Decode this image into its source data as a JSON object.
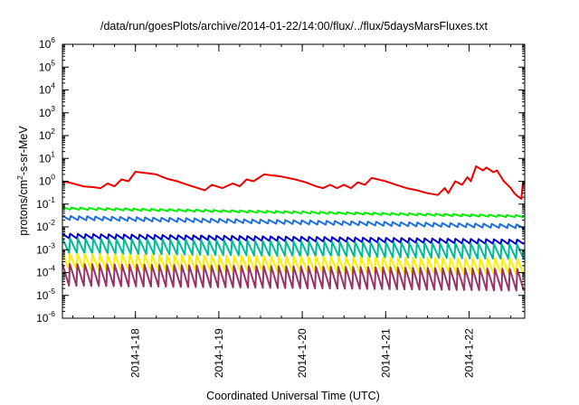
{
  "chart_data": {
    "type": "line",
    "title": "/data/run/goesPlots/archive/2014-01-22/14:00/flux/../flux/5daysMarsFluxes.txt",
    "xlabel": "Coordinated Universal Time (UTC)",
    "ylabel": {
      "prefix": "protons/cm",
      "sup": "2",
      "suffix": "-s-sr-MeV"
    },
    "y_scale": "log",
    "ylim": [
      1e-06,
      1000000.0
    ],
    "y_ticks": [
      {
        "value": 1e-06,
        "base": "10",
        "exp": "-6"
      },
      {
        "value": 1e-05,
        "base": "10",
        "exp": "-5"
      },
      {
        "value": 0.0001,
        "base": "10",
        "exp": "-4"
      },
      {
        "value": 0.001,
        "base": "10",
        "exp": "-3"
      },
      {
        "value": 0.01,
        "base": "10",
        "exp": "-2"
      },
      {
        "value": 0.1,
        "base": "10",
        "exp": "-1"
      },
      {
        "value": 1.0,
        "base": "10",
        "exp": "0"
      },
      {
        "value": 10.0,
        "base": "10",
        "exp": "1"
      },
      {
        "value": 100.0,
        "base": "10",
        "exp": "2"
      },
      {
        "value": 1000.0,
        "base": "10",
        "exp": "3"
      },
      {
        "value": 10000.0,
        "base": "10",
        "exp": "4"
      },
      {
        "value": 100000.0,
        "base": "10",
        "exp": "5"
      },
      {
        "value": 1000000.0,
        "base": "10",
        "exp": "6"
      }
    ],
    "xlim": [
      "2014-01-17 03:00",
      "2014-01-22 16:00"
    ],
    "x_ticks": [
      {
        "label": "2014-1-18",
        "value": "2014-01-18 00:00"
      },
      {
        "label": "2014-1-19",
        "value": "2014-01-19 00:00"
      },
      {
        "label": "2014-1-20",
        "value": "2014-01-20 00:00"
      },
      {
        "label": "2014-1-21",
        "value": "2014-01-21 00:00"
      },
      {
        "label": "2014-1-22",
        "value": "2014-01-22 00:00"
      }
    ],
    "grid": false,
    "legend": "none",
    "series": [
      {
        "color": "#ee0000",
        "points": [
          [
            "2014-01-17 03:00",
            1.0
          ],
          [
            "2014-01-17 06:00",
            0.8
          ],
          [
            "2014-01-17 09:00",
            0.6
          ],
          [
            "2014-01-17 12:00",
            0.55
          ],
          [
            "2014-01-17 14:00",
            0.5
          ],
          [
            "2014-01-17 16:00",
            0.8
          ],
          [
            "2014-01-17 18:00",
            0.6
          ],
          [
            "2014-01-17 20:00",
            1.2
          ],
          [
            "2014-01-17 22:00",
            1.0
          ],
          [
            "2014-01-18 00:00",
            2.6
          ],
          [
            "2014-01-18 03:00",
            2.3
          ],
          [
            "2014-01-18 06:00",
            2.0
          ],
          [
            "2014-01-18 09:00",
            1.3
          ],
          [
            "2014-01-18 12:00",
            1.0
          ],
          [
            "2014-01-18 15:00",
            0.7
          ],
          [
            "2014-01-18 18:00",
            0.5
          ],
          [
            "2014-01-18 20:00",
            0.4
          ],
          [
            "2014-01-18 22:00",
            0.7
          ],
          [
            "2014-01-19 01:00",
            0.5
          ],
          [
            "2014-01-19 04:00",
            0.8
          ],
          [
            "2014-01-19 06:00",
            0.6
          ],
          [
            "2014-01-19 08:00",
            1.2
          ],
          [
            "2014-01-19 10:00",
            1.0
          ],
          [
            "2014-01-19 13:00",
            2.0
          ],
          [
            "2014-01-19 18:00",
            1.6
          ],
          [
            "2014-01-19 22:00",
            1.2
          ],
          [
            "2014-01-20 01:00",
            0.9
          ],
          [
            "2014-01-20 04:00",
            0.6
          ],
          [
            "2014-01-20 06:00",
            0.5
          ],
          [
            "2014-01-20 08:00",
            0.7
          ],
          [
            "2014-01-20 10:00",
            0.5
          ],
          [
            "2014-01-20 12:00",
            0.7
          ],
          [
            "2014-01-20 14:00",
            0.5
          ],
          [
            "2014-01-20 16:00",
            0.9
          ],
          [
            "2014-01-20 18:00",
            0.7
          ],
          [
            "2014-01-20 20:00",
            1.4
          ],
          [
            "2014-01-21 00:00",
            1.0
          ],
          [
            "2014-01-21 03:00",
            0.7
          ],
          [
            "2014-01-21 06:00",
            0.5
          ],
          [
            "2014-01-21 09:00",
            0.4
          ],
          [
            "2014-01-21 12:00",
            0.3
          ],
          [
            "2014-01-21 15:00",
            0.25
          ],
          [
            "2014-01-21 17:00",
            0.5
          ],
          [
            "2014-01-21 18:00",
            0.3
          ],
          [
            "2014-01-21 20:00",
            1.0
          ],
          [
            "2014-01-21 22:00",
            0.7
          ],
          [
            "2014-01-21 23:30",
            1.5
          ],
          [
            "2014-01-22 00:30",
            1.0
          ],
          [
            "2014-01-22 02:00",
            4.5
          ],
          [
            "2014-01-22 04:00",
            3.0
          ],
          [
            "2014-01-22 05:00",
            4.0
          ],
          [
            "2014-01-22 07:00",
            2.5
          ],
          [
            "2014-01-22 08:00",
            3.0
          ],
          [
            "2014-01-22 10:00",
            1.0
          ],
          [
            "2014-01-22 12:00",
            0.5
          ],
          [
            "2014-01-22 13:00",
            0.3
          ],
          [
            "2014-01-22 14:00",
            0.22
          ],
          [
            "2014-01-22 15:00",
            0.17
          ],
          [
            "2014-01-22 15:30",
            0.9
          ],
          [
            "2014-01-22 16:00",
            0.7
          ]
        ]
      },
      {
        "color": "#00ee00",
        "level": 0.065,
        "trend": 0.45,
        "amplitude": 1.25,
        "teeth": 52
      },
      {
        "color": "#1f6fdd",
        "level": 0.025,
        "trend": 0.42,
        "amplitude": 1.5,
        "teeth": 56
      },
      {
        "color": "#0000cc",
        "level": 0.004,
        "trend": 0.55,
        "amplitude": 1.6,
        "teeth": 60
      },
      {
        "color": "#00bb99",
        "level": 0.0015,
        "trend": 0.55,
        "amplitude": 4.5,
        "teeth": 60
      },
      {
        "color": "#ffee00",
        "level": 0.0003,
        "trend": 0.6,
        "amplitude": 5.0,
        "teeth": 62
      },
      {
        "color": "#993366",
        "level": 8e-05,
        "trend": 0.6,
        "amplitude": 9.0,
        "teeth": 62
      }
    ]
  }
}
